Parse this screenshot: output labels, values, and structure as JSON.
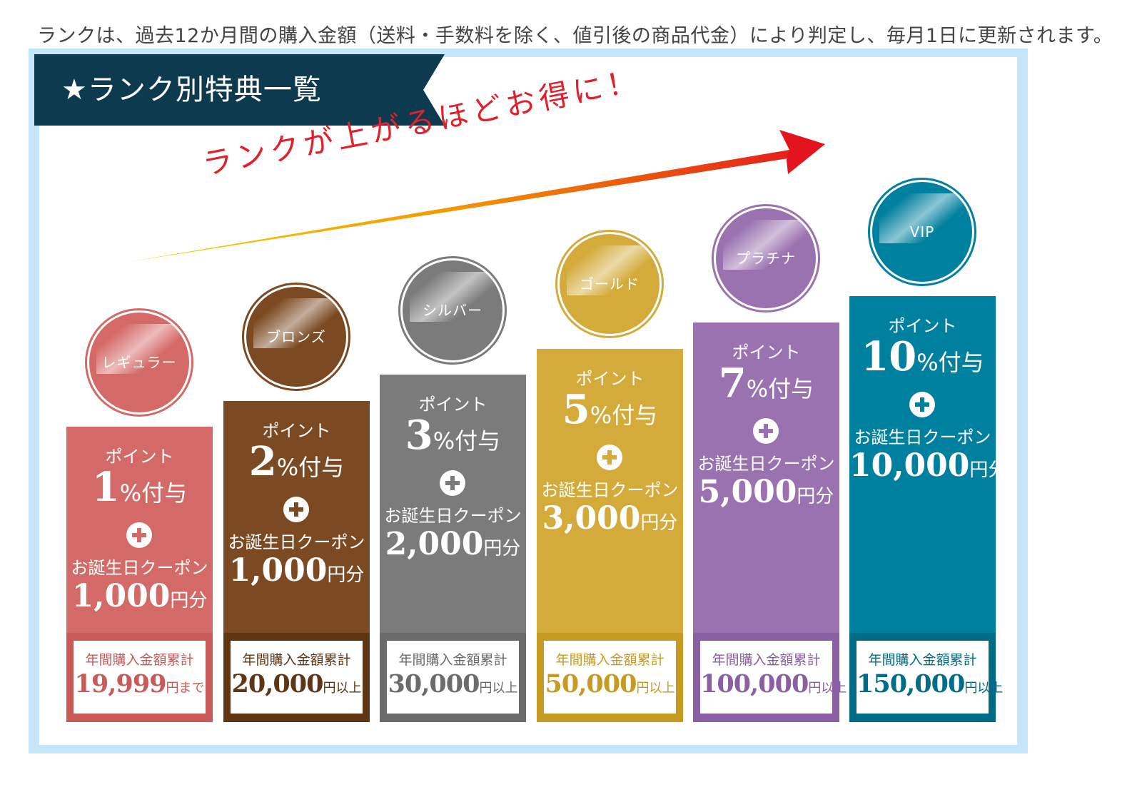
{
  "note": "ランクは、過去12か月間の購入金額（送料・手数料を除く、値引後の商品代金）により判定し、毎月1日に更新されます。",
  "banner_title": "★ランク別特典一覧",
  "slogan": "ランクが上がるほどお得に！",
  "colors": {
    "frame": "#c5e6f8",
    "banner": "#0e3a4f",
    "arrow_start": "#f6d300",
    "arrow_end": "#e3141d"
  },
  "ranks": [
    {
      "name": "レギュラー",
      "color": "#d46a67",
      "dark": "#c95a58",
      "point_label": "ポイント",
      "point_value": "1",
      "point_unit": "%付与",
      "coupon_label": "お誕生日クーポン",
      "coupon_value": "1,000",
      "coupon_unit": "円分",
      "req_label": "年間購入金額累計",
      "req_value": "19,999",
      "req_unit": "円まで"
    },
    {
      "name": "ブロンズ",
      "color": "#7b4a22",
      "dark": "#5e3614",
      "point_label": "ポイント",
      "point_value": "2",
      "point_unit": "%付与",
      "coupon_label": "お誕生日クーポン",
      "coupon_value": "1,000",
      "coupon_unit": "円分",
      "req_label": "年間購入金額累計",
      "req_value": "20,000",
      "req_unit": "円以上"
    },
    {
      "name": "シルバー",
      "color": "#7b7b7b",
      "dark": "#6b6b6b",
      "point_label": "ポイント",
      "point_value": "3",
      "point_unit": "%付与",
      "coupon_label": "お誕生日クーポン",
      "coupon_value": "2,000",
      "coupon_unit": "円分",
      "req_label": "年間購入金額累計",
      "req_value": "30,000",
      "req_unit": "円以上"
    },
    {
      "name": "ゴールド",
      "color": "#d4ab3a",
      "dark": "#c79b22",
      "point_label": "ポイント",
      "point_value": "5",
      "point_unit": "%付与",
      "coupon_label": "お誕生日クーポン",
      "coupon_value": "3,000",
      "coupon_unit": "円分",
      "req_label": "年間購入金額累計",
      "req_value": "50,000",
      "req_unit": "円以上"
    },
    {
      "name": "プラチナ",
      "color": "#9a72b0",
      "dark": "#8a5fa3",
      "point_label": "ポイント",
      "point_value": "7",
      "point_unit": "%付与",
      "coupon_label": "お誕生日クーポン",
      "coupon_value": "5,000",
      "coupon_unit": "円分",
      "req_label": "年間購入金額累計",
      "req_value": "100,000",
      "req_unit": "円以上"
    },
    {
      "name": "VIP",
      "color": "#00809f",
      "dark": "#006c88",
      "point_label": "ポイント",
      "point_value": "10",
      "point_unit": "%付与",
      "coupon_label": "お誕生日クーポン",
      "coupon_value": "10,000",
      "coupon_unit": "円分",
      "req_label": "年間購入金額累計",
      "req_value": "150,000",
      "req_unit": "円以上"
    }
  ]
}
